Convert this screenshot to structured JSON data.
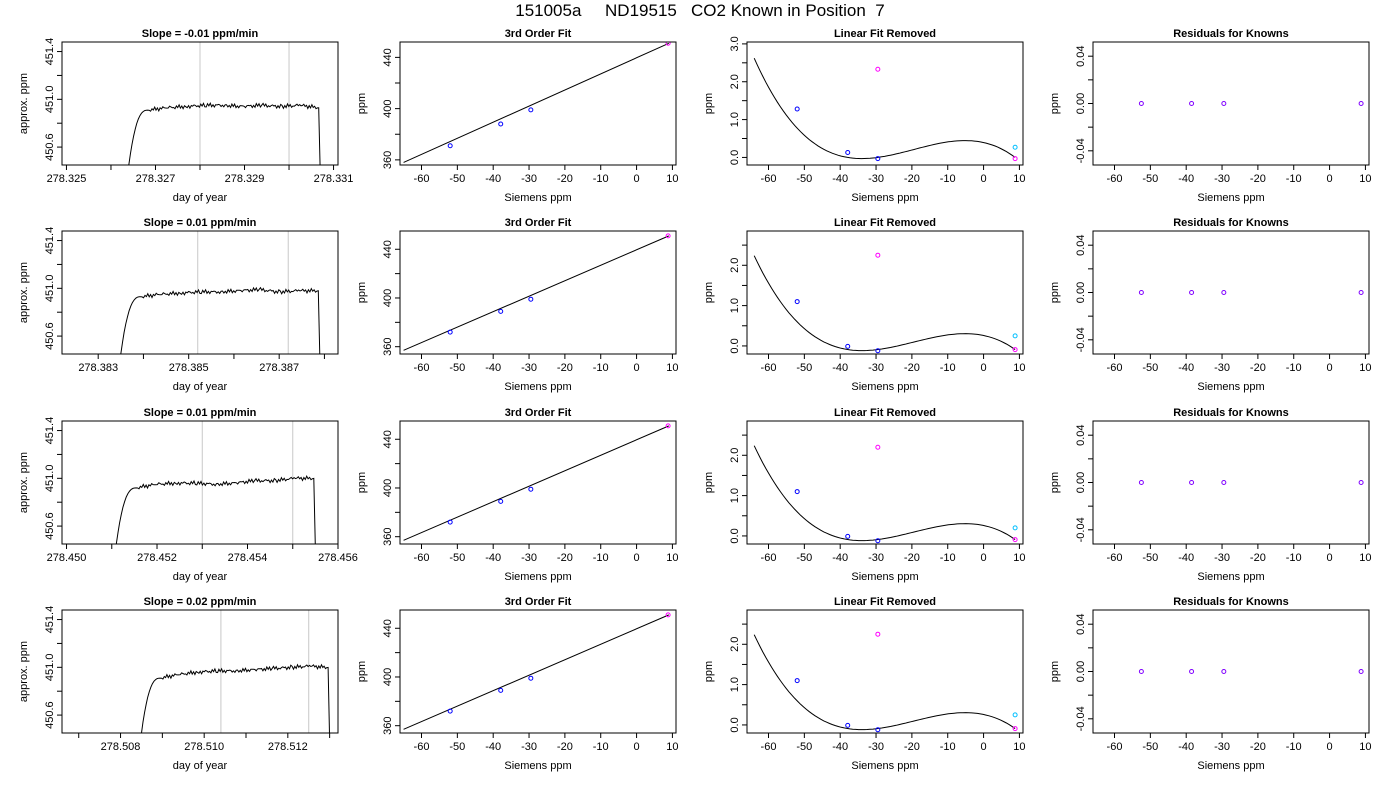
{
  "title": "151005a     ND19515   CO2 Known in Position  7",
  "colors": {
    "line": "#000000",
    "vline": "#c8c8c8",
    "known": "#0000ff",
    "magenta": "#ff00ff",
    "cyan": "#00bfff",
    "purple": "#8000ff"
  },
  "chart_data": [
    {
      "type": "line",
      "title": "Slope =  -0.01  ppm/min",
      "xlabel": "day of year",
      "ylabel": "approx. ppm",
      "xlim": [
        278.3249,
        278.3311
      ],
      "ylim": [
        450.45,
        451.48
      ],
      "xticks": [
        278.325,
        278.326,
        278.327,
        278.328,
        278.329,
        278.33,
        278.331
      ],
      "xtick_labels": [
        "278.325",
        "",
        "278.327",
        "",
        "278.329",
        "",
        "278.331"
      ],
      "yticks": [
        450.6,
        450.8,
        451.0,
        451.2,
        451.4
      ],
      "ytick_labels": [
        "450.6",
        "",
        "451.0",
        "",
        "451.4"
      ],
      "vlines": [
        278.328,
        278.33
      ],
      "trace": {
        "start": 278.3264,
        "end": 278.3307,
        "base": 450.45,
        "plateau": [
          450.91,
          450.93,
          450.94,
          450.95,
          450.95,
          450.94,
          450.95,
          450.94,
          450.95,
          450.93
        ]
      }
    },
    {
      "type": "line",
      "title": "3rd Order Fit",
      "xlabel": "Siemens ppm",
      "ylabel": "ppm",
      "xlim": [
        -66,
        11
      ],
      "ylim": [
        356,
        452
      ],
      "xticks": [
        -60,
        -50,
        -40,
        -30,
        -20,
        -10,
        0,
        10
      ],
      "xtick_labels": [
        "-60",
        "-50",
        "-40",
        "-30",
        "-20",
        "-10",
        "0",
        "10"
      ],
      "yticks": [
        360,
        380,
        400,
        420,
        440
      ],
      "ytick_labels": [
        "360",
        "",
        "400",
        "",
        "440"
      ],
      "line": {
        "x": [
          -65,
          9
        ],
        "y": [
          358,
          451
        ]
      },
      "points": [
        {
          "x": -52,
          "y": 371,
          "color": "#0000ff"
        },
        {
          "x": -37.9,
          "y": 388,
          "color": "#0000ff"
        },
        {
          "x": -29.5,
          "y": 399,
          "color": "#0000ff"
        },
        {
          "x": 8.8,
          "y": 451,
          "color": "#ff00ff"
        }
      ]
    },
    {
      "type": "scatter",
      "title": "Linear Fit Removed",
      "xlabel": "Siemens ppm",
      "ylabel": "ppm",
      "xlim": [
        -66,
        11
      ],
      "ylim": [
        -0.2,
        3.05
      ],
      "xticks": [
        -60,
        -50,
        -40,
        -30,
        -20,
        -10,
        0,
        10
      ],
      "xtick_labels": [
        "-60",
        "-50",
        "-40",
        "-30",
        "-20",
        "-10",
        "0",
        "10"
      ],
      "yticks": [
        0,
        0.5,
        1,
        1.5,
        2,
        2.5,
        3
      ],
      "ytick_labels": [
        "0.0",
        "",
        "1.0",
        "",
        "2.0",
        "",
        "3.0"
      ],
      "curve": {
        "roots": [
          -29.5,
          -37.9,
          8.8
        ],
        "k": -4e-05,
        "offset": 0,
        "from": -64,
        "to": 8.8
      },
      "points": [
        {
          "x": -52,
          "y": 1.28,
          "color": "#0000ff"
        },
        {
          "x": -37.9,
          "y": 0.13,
          "color": "#0000ff"
        },
        {
          "x": -29.5,
          "y": -0.03,
          "color": "#0000ff"
        },
        {
          "x": 8.8,
          "y": -0.03,
          "color": "#ff00ff"
        },
        {
          "x": -29.5,
          "y": 2.33,
          "color": "#ff00ff"
        },
        {
          "x": 8.8,
          "y": 0.27,
          "color": "#00bfff"
        }
      ]
    },
    {
      "type": "scatter",
      "title": "Residuals for Knowns",
      "xlabel": "Siemens ppm",
      "ylabel": "ppm",
      "xlim": [
        -66,
        11
      ],
      "ylim": [
        -0.052,
        0.052
      ],
      "xticks": [
        -60,
        -50,
        -40,
        -30,
        -20,
        -10,
        0,
        10
      ],
      "xtick_labels": [
        "-60",
        "-50",
        "-40",
        "-30",
        "-20",
        "-10",
        "0",
        "10"
      ],
      "yticks": [
        -0.04,
        -0.02,
        0,
        0.02,
        0.04
      ],
      "ytick_labels": [
        "-0.04",
        "",
        "0.00",
        "",
        "0.04"
      ],
      "points": [
        {
          "x": -52.5,
          "y": 0,
          "color": "#8000ff"
        },
        {
          "x": -38.5,
          "y": 0,
          "color": "#8000ff"
        },
        {
          "x": -29.5,
          "y": 0,
          "color": "#8000ff"
        },
        {
          "x": 8.8,
          "y": 0,
          "color": "#8000ff"
        }
      ]
    },
    {
      "type": "line",
      "title": "Slope =  0.01  ppm/min",
      "xlabel": "day of year",
      "ylabel": "approx. ppm",
      "xlim": [
        278.3822,
        278.3883
      ],
      "ylim": [
        450.45,
        451.48
      ],
      "xticks": [
        278.383,
        278.384,
        278.385,
        278.386,
        278.387,
        278.388
      ],
      "xtick_labels": [
        "278.383",
        "",
        "278.385",
        "",
        "278.387",
        ""
      ],
      "yticks": [
        450.6,
        450.8,
        451.0,
        451.2,
        451.4
      ],
      "ytick_labels": [
        "450.6",
        "",
        "451.0",
        "",
        "451.4"
      ],
      "vlines": [
        278.3852,
        278.3872
      ],
      "trace": {
        "start": 278.3835,
        "end": 278.3879,
        "base": 450.45,
        "plateau": [
          450.93,
          450.95,
          450.96,
          450.97,
          450.97,
          450.98,
          450.99,
          450.97,
          450.98,
          450.98
        ]
      }
    },
    {
      "type": "line",
      "title": "3rd Order Fit",
      "xlabel": "Siemens ppm",
      "ylabel": "ppm",
      "xlim": [
        -66,
        11
      ],
      "ylim": [
        354,
        455
      ],
      "xticks": [
        -60,
        -50,
        -40,
        -30,
        -20,
        -10,
        0,
        10
      ],
      "xtick_labels": [
        "-60",
        "-50",
        "-40",
        "-30",
        "-20",
        "-10",
        "0",
        "10"
      ],
      "yticks": [
        360,
        380,
        400,
        420,
        440
      ],
      "ytick_labels": [
        "360",
        "",
        "400",
        "",
        "440"
      ],
      "line": {
        "x": [
          -65,
          9
        ],
        "y": [
          357,
          451
        ]
      },
      "points": [
        {
          "x": -52,
          "y": 372,
          "color": "#0000ff"
        },
        {
          "x": -37.9,
          "y": 389,
          "color": "#0000ff"
        },
        {
          "x": -29.5,
          "y": 399,
          "color": "#0000ff"
        },
        {
          "x": 8.8,
          "y": 451,
          "color": "#ff00ff"
        }
      ]
    },
    {
      "type": "scatter",
      "title": "Linear Fit Removed",
      "xlabel": "Siemens ppm",
      "ylabel": "ppm",
      "xlim": [
        -66,
        11
      ],
      "ylim": [
        -0.2,
        2.85
      ],
      "xticks": [
        -60,
        -50,
        -40,
        -30,
        -20,
        -10,
        0,
        10
      ],
      "xtick_labels": [
        "-60",
        "-50",
        "-40",
        "-30",
        "-20",
        "-10",
        "0",
        "10"
      ],
      "yticks": [
        0,
        0.5,
        1,
        1.5,
        2,
        2.5
      ],
      "ytick_labels": [
        "0.0",
        "",
        "1.0",
        "",
        "2.0",
        ""
      ],
      "curve": {
        "roots": [
          -29.5,
          -37.9,
          8.8
        ],
        "k": -3.55e-05,
        "offset": -0.09,
        "from": -64,
        "to": 8.8
      },
      "points": [
        {
          "x": -52,
          "y": 1.1,
          "color": "#0000ff"
        },
        {
          "x": -37.9,
          "y": -0.01,
          "color": "#0000ff"
        },
        {
          "x": -29.5,
          "y": -0.12,
          "color": "#0000ff"
        },
        {
          "x": 8.8,
          "y": -0.09,
          "color": "#ff00ff"
        },
        {
          "x": -29.5,
          "y": 2.25,
          "color": "#ff00ff"
        },
        {
          "x": 8.8,
          "y": 0.25,
          "color": "#00bfff"
        }
      ]
    },
    {
      "type": "scatter",
      "title": "Residuals for Knowns",
      "xlabel": "Siemens ppm",
      "ylabel": "ppm",
      "xlim": [
        -66,
        11
      ],
      "ylim": [
        -0.052,
        0.052
      ],
      "xticks": [
        -60,
        -50,
        -40,
        -30,
        -20,
        -10,
        0,
        10
      ],
      "xtick_labels": [
        "-60",
        "-50",
        "-40",
        "-30",
        "-20",
        "-10",
        "0",
        "10"
      ],
      "yticks": [
        -0.04,
        -0.02,
        0,
        0.02,
        0.04
      ],
      "ytick_labels": [
        "-0.04",
        "",
        "0.00",
        "",
        "0.04"
      ],
      "points": [
        {
          "x": -52.5,
          "y": 0,
          "color": "#8000ff"
        },
        {
          "x": -38.5,
          "y": 0,
          "color": "#8000ff"
        },
        {
          "x": -29.5,
          "y": 0,
          "color": "#8000ff"
        },
        {
          "x": 8.8,
          "y": 0,
          "color": "#8000ff"
        }
      ]
    },
    {
      "type": "line",
      "title": "Slope =  0.01  ppm/min",
      "xlabel": "day of year",
      "ylabel": "approx. ppm",
      "xlim": [
        278.4499,
        278.456
      ],
      "ylim": [
        450.45,
        451.48
      ],
      "xticks": [
        278.45,
        278.451,
        278.452,
        278.453,
        278.454,
        278.455,
        278.456
      ],
      "xtick_labels": [
        "278.450",
        "",
        "278.452",
        "",
        "278.454",
        "",
        "278.456"
      ],
      "yticks": [
        450.6,
        450.8,
        451.0,
        451.2,
        451.4
      ],
      "ytick_labels": [
        "450.6",
        "",
        "451.0",
        "",
        "451.4"
      ],
      "vlines": [
        278.453,
        278.455
      ],
      "trace": {
        "start": 278.4511,
        "end": 278.4555,
        "base": 450.45,
        "plateau": [
          450.92,
          450.95,
          450.96,
          450.96,
          450.95,
          450.96,
          450.98,
          450.98,
          451.0,
          451.0
        ]
      }
    },
    {
      "type": "line",
      "title": "3rd Order Fit",
      "xlabel": "Siemens ppm",
      "ylabel": "ppm",
      "xlim": [
        -66,
        11
      ],
      "ylim": [
        354,
        455
      ],
      "xticks": [
        -60,
        -50,
        -40,
        -30,
        -20,
        -10,
        0,
        10
      ],
      "xtick_labels": [
        "-60",
        "-50",
        "-40",
        "-30",
        "-20",
        "-10",
        "0",
        "10"
      ],
      "yticks": [
        360,
        380,
        400,
        420,
        440
      ],
      "ytick_labels": [
        "360",
        "",
        "400",
        "",
        "440"
      ],
      "line": {
        "x": [
          -65,
          9
        ],
        "y": [
          357,
          451
        ]
      },
      "points": [
        {
          "x": -52,
          "y": 372,
          "color": "#0000ff"
        },
        {
          "x": -37.9,
          "y": 389,
          "color": "#0000ff"
        },
        {
          "x": -29.5,
          "y": 399,
          "color": "#0000ff"
        },
        {
          "x": 8.8,
          "y": 451,
          "color": "#ff00ff"
        }
      ]
    },
    {
      "type": "scatter",
      "title": "Linear Fit Removed",
      "xlabel": "Siemens ppm",
      "ylabel": "ppm",
      "xlim": [
        -66,
        11
      ],
      "ylim": [
        -0.2,
        2.85
      ],
      "xticks": [
        -60,
        -50,
        -40,
        -30,
        -20,
        -10,
        0,
        10
      ],
      "xtick_labels": [
        "-60",
        "-50",
        "-40",
        "-30",
        "-20",
        "-10",
        "0",
        "10"
      ],
      "yticks": [
        0,
        0.5,
        1,
        1.5,
        2,
        2.5
      ],
      "ytick_labels": [
        "0.0",
        "",
        "1.0",
        "",
        "2.0",
        ""
      ],
      "curve": {
        "roots": [
          -29.5,
          -37.9,
          8.8
        ],
        "k": -3.55e-05,
        "offset": -0.09,
        "from": -64,
        "to": 8.8
      },
      "points": [
        {
          "x": -52,
          "y": 1.1,
          "color": "#0000ff"
        },
        {
          "x": -37.9,
          "y": -0.01,
          "color": "#0000ff"
        },
        {
          "x": -29.5,
          "y": -0.12,
          "color": "#0000ff"
        },
        {
          "x": 8.8,
          "y": -0.09,
          "color": "#ff00ff"
        },
        {
          "x": -29.5,
          "y": 2.2,
          "color": "#ff00ff"
        },
        {
          "x": 8.8,
          "y": 0.2,
          "color": "#00bfff"
        }
      ]
    },
    {
      "type": "scatter",
      "title": "Residuals for Knowns",
      "xlabel": "Siemens ppm",
      "ylabel": "ppm",
      "xlim": [
        -66,
        11
      ],
      "ylim": [
        -0.052,
        0.052
      ],
      "xticks": [
        -60,
        -50,
        -40,
        -30,
        -20,
        -10,
        0,
        10
      ],
      "xtick_labels": [
        "-60",
        "-50",
        "-40",
        "-30",
        "-20",
        "-10",
        "0",
        "10"
      ],
      "yticks": [
        -0.04,
        -0.02,
        0,
        0.02,
        0.04
      ],
      "ytick_labels": [
        "-0.04",
        "",
        "0.00",
        "",
        "0.04"
      ],
      "points": [
        {
          "x": -52.5,
          "y": 0,
          "color": "#8000ff"
        },
        {
          "x": -38.5,
          "y": 0,
          "color": "#8000ff"
        },
        {
          "x": -29.5,
          "y": 0,
          "color": "#8000ff"
        },
        {
          "x": 8.8,
          "y": 0,
          "color": "#8000ff"
        }
      ]
    },
    {
      "type": "line",
      "title": "Slope =  0.02  ppm/min",
      "xlabel": "day of year",
      "ylabel": "approx. ppm",
      "xlim": [
        278.5066,
        278.5132
      ],
      "ylim": [
        450.45,
        451.48
      ],
      "xticks": [
        278.507,
        278.508,
        278.509,
        278.51,
        278.511,
        278.512,
        278.513
      ],
      "xtick_labels": [
        "",
        "278.508",
        "",
        "278.510",
        "",
        "278.512",
        ""
      ],
      "yticks": [
        450.6,
        450.8,
        451.0,
        451.2,
        451.4
      ],
      "ytick_labels": [
        "450.6",
        "",
        "451.0",
        "",
        "451.4"
      ],
      "vlines": [
        278.5104,
        278.5125
      ],
      "trace": {
        "start": 278.5085,
        "end": 278.513,
        "base": 450.45,
        "plateau": [
          450.91,
          450.94,
          450.96,
          450.97,
          450.97,
          450.98,
          450.99,
          451.0,
          451.01,
          451.0
        ]
      }
    },
    {
      "type": "line",
      "title": "3rd Order Fit",
      "xlabel": "Siemens ppm",
      "ylabel": "ppm",
      "xlim": [
        -66,
        11
      ],
      "ylim": [
        354,
        455
      ],
      "xticks": [
        -60,
        -50,
        -40,
        -30,
        -20,
        -10,
        0,
        10
      ],
      "xtick_labels": [
        "-60",
        "-50",
        "-40",
        "-30",
        "-20",
        "-10",
        "0",
        "10"
      ],
      "yticks": [
        360,
        380,
        400,
        420,
        440
      ],
      "ytick_labels": [
        "360",
        "",
        "400",
        "",
        "440"
      ],
      "line": {
        "x": [
          -65,
          9
        ],
        "y": [
          357,
          451
        ]
      },
      "points": [
        {
          "x": -52,
          "y": 372,
          "color": "#0000ff"
        },
        {
          "x": -37.9,
          "y": 389,
          "color": "#0000ff"
        },
        {
          "x": -29.5,
          "y": 399,
          "color": "#0000ff"
        },
        {
          "x": 8.8,
          "y": 451,
          "color": "#ff00ff"
        }
      ]
    },
    {
      "type": "scatter",
      "title": "Linear Fit Removed",
      "xlabel": "Siemens ppm",
      "ylabel": "ppm",
      "xlim": [
        -66,
        11
      ],
      "ylim": [
        -0.2,
        2.85
      ],
      "xticks": [
        -60,
        -50,
        -40,
        -30,
        -20,
        -10,
        0,
        10
      ],
      "xtick_labels": [
        "-60",
        "-50",
        "-40",
        "-30",
        "-20",
        "-10",
        "0",
        "10"
      ],
      "yticks": [
        0,
        0.5,
        1,
        1.5,
        2,
        2.5
      ],
      "ytick_labels": [
        "0.0",
        "",
        "1.0",
        "",
        "2.0",
        ""
      ],
      "curve": {
        "roots": [
          -29.5,
          -37.9,
          8.8
        ],
        "k": -3.55e-05,
        "offset": -0.09,
        "from": -64,
        "to": 8.8
      },
      "points": [
        {
          "x": -52,
          "y": 1.1,
          "color": "#0000ff"
        },
        {
          "x": -37.9,
          "y": -0.01,
          "color": "#0000ff"
        },
        {
          "x": -29.5,
          "y": -0.12,
          "color": "#0000ff"
        },
        {
          "x": 8.8,
          "y": -0.09,
          "color": "#ff00ff"
        },
        {
          "x": -29.5,
          "y": 2.25,
          "color": "#ff00ff"
        },
        {
          "x": 8.8,
          "y": 0.25,
          "color": "#00bfff"
        }
      ]
    },
    {
      "type": "scatter",
      "title": "Residuals for Knowns",
      "xlabel": "Siemens ppm",
      "ylabel": "ppm",
      "xlim": [
        -66,
        11
      ],
      "ylim": [
        -0.052,
        0.052
      ],
      "xticks": [
        -60,
        -50,
        -40,
        -30,
        -20,
        -10,
        0,
        10
      ],
      "xtick_labels": [
        "-60",
        "-50",
        "-40",
        "-30",
        "-20",
        "-10",
        "0",
        "10"
      ],
      "yticks": [
        -0.04,
        -0.02,
        0,
        0.02,
        0.04
      ],
      "ytick_labels": [
        "-0.04",
        "",
        "0.00",
        "",
        "0.04"
      ],
      "points": [
        {
          "x": -52.5,
          "y": 0,
          "color": "#8000ff"
        },
        {
          "x": -38.5,
          "y": 0,
          "color": "#8000ff"
        },
        {
          "x": -29.5,
          "y": 0,
          "color": "#8000ff"
        },
        {
          "x": 8.8,
          "y": 0,
          "color": "#8000ff"
        }
      ]
    }
  ]
}
